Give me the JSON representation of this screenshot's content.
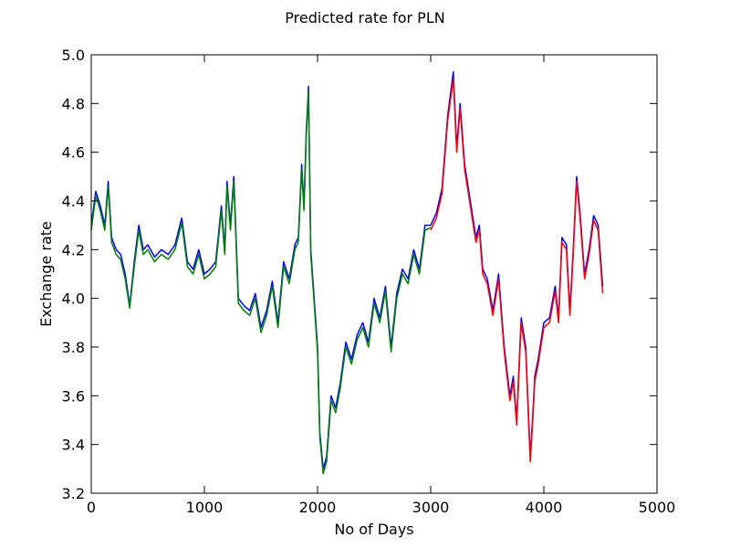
{
  "chart_data": {
    "type": "line",
    "title": "Predicted rate for PLN",
    "xlabel": "No of Days",
    "ylabel": "Exchange rate",
    "xlim": [
      0,
      5000
    ],
    "ylim": [
      3.2,
      5.0
    ],
    "xticks": [
      0,
      1000,
      2000,
      3000,
      4000,
      5000
    ],
    "yticks": [
      3.2,
      3.4,
      3.6,
      3.8,
      4.0,
      4.2,
      4.4,
      4.6,
      4.8,
      5.0
    ],
    "xtick_labels": [
      "0",
      "1000",
      "2000",
      "3000",
      "4000",
      "5000"
    ],
    "ytick_labels": [
      "3.2",
      "3.4",
      "3.6",
      "3.8",
      "4.0",
      "4.2",
      "4.4",
      "4.6",
      "4.8",
      "5.0"
    ],
    "grid": false,
    "series": [
      {
        "color": "#0000ff",
        "x": [
          0,
          40,
          80,
          120,
          150,
          180,
          220,
          260,
          300,
          340,
          380,
          420,
          460,
          500,
          560,
          620,
          680,
          740,
          800,
          850,
          900,
          950,
          1000,
          1050,
          1100,
          1150,
          1180,
          1200,
          1230,
          1260,
          1300,
          1350,
          1400,
          1450,
          1500,
          1550,
          1600,
          1650,
          1700,
          1750,
          1800,
          1830,
          1860,
          1880,
          1900,
          1920,
          1940,
          1970,
          2000,
          2020,
          2050,
          2080,
          2120,
          2160,
          2200,
          2250,
          2300,
          2350,
          2400,
          2450,
          2500,
          2550,
          2600,
          2650,
          2700,
          2750,
          2800,
          2850,
          2900,
          2950,
          3000,
          3050,
          3100,
          3150,
          3200,
          3230,
          3260,
          3300,
          3350,
          3400,
          3430,
          3460,
          3500,
          3550,
          3600,
          3650,
          3700,
          3730,
          3760,
          3800,
          3840,
          3880,
          3900,
          3920,
          3950,
          4000,
          4050,
          4100,
          4130,
          4160,
          4200,
          4230,
          4260,
          4290,
          4320,
          4360,
          4400,
          4440,
          4480,
          4520
        ],
        "y": [
          4.3,
          4.44,
          4.38,
          4.3,
          4.48,
          4.25,
          4.2,
          4.18,
          4.1,
          3.97,
          4.15,
          4.3,
          4.2,
          4.22,
          4.17,
          4.2,
          4.18,
          4.22,
          4.33,
          4.15,
          4.12,
          4.2,
          4.1,
          4.12,
          4.15,
          4.38,
          4.2,
          4.48,
          4.3,
          4.5,
          4.0,
          3.97,
          3.95,
          4.02,
          3.88,
          3.95,
          4.07,
          3.9,
          4.15,
          4.08,
          4.22,
          4.25,
          4.55,
          4.38,
          4.68,
          4.87,
          4.2,
          4.0,
          3.8,
          3.45,
          3.3,
          3.35,
          3.6,
          3.55,
          3.65,
          3.82,
          3.75,
          3.85,
          3.9,
          3.82,
          4.0,
          3.92,
          4.05,
          3.8,
          4.02,
          4.12,
          4.08,
          4.2,
          4.12,
          4.3,
          4.3,
          4.35,
          4.45,
          4.75,
          4.93,
          4.62,
          4.8,
          4.55,
          4.4,
          4.25,
          4.3,
          4.12,
          4.08,
          3.95,
          4.1,
          3.8,
          3.6,
          3.68,
          3.5,
          3.92,
          3.8,
          3.35,
          3.5,
          3.68,
          3.75,
          3.9,
          3.92,
          4.05,
          3.92,
          4.25,
          4.22,
          3.95,
          4.2,
          4.5,
          4.35,
          4.1,
          4.2,
          4.34,
          4.3,
          4.05
        ]
      },
      {
        "color": "#008000",
        "x": [
          0,
          40,
          80,
          120,
          150,
          180,
          220,
          260,
          300,
          340,
          380,
          420,
          460,
          500,
          560,
          620,
          680,
          740,
          800,
          850,
          900,
          950,
          1000,
          1050,
          1100,
          1150,
          1180,
          1200,
          1230,
          1260,
          1300,
          1350,
          1400,
          1450,
          1500,
          1550,
          1600,
          1650,
          1700,
          1750,
          1800,
          1830,
          1860,
          1880,
          1900,
          1920,
          1940,
          1970,
          2000,
          2020,
          2050,
          2080,
          2120,
          2160,
          2200,
          2250,
          2300,
          2350,
          2400,
          2450,
          2500,
          2550,
          2600,
          2650,
          2700,
          2750,
          2800,
          2850,
          2900,
          2950,
          3000
        ],
        "y": [
          4.28,
          4.42,
          4.36,
          4.28,
          4.46,
          4.23,
          4.18,
          4.16,
          4.08,
          3.96,
          4.13,
          4.28,
          4.18,
          4.2,
          4.15,
          4.18,
          4.16,
          4.2,
          4.31,
          4.13,
          4.1,
          4.18,
          4.08,
          4.1,
          4.13,
          4.36,
          4.18,
          4.46,
          4.28,
          4.48,
          3.98,
          3.95,
          3.93,
          4.0,
          3.86,
          3.93,
          4.05,
          3.88,
          4.13,
          4.06,
          4.2,
          4.23,
          4.53,
          4.36,
          4.66,
          4.85,
          4.18,
          3.98,
          3.78,
          3.43,
          3.28,
          3.33,
          3.58,
          3.53,
          3.63,
          3.8,
          3.73,
          3.83,
          3.88,
          3.8,
          3.98,
          3.9,
          4.03,
          3.78,
          4.0,
          4.1,
          4.06,
          4.18,
          4.1,
          4.28,
          4.29
        ]
      },
      {
        "color": "#ff0000",
        "x": [
          3000,
          3050,
          3100,
          3150,
          3200,
          3230,
          3260,
          3300,
          3350,
          3400,
          3430,
          3460,
          3500,
          3550,
          3600,
          3650,
          3700,
          3730,
          3760,
          3800,
          3840,
          3880,
          3900,
          3920,
          3950,
          4000,
          4050,
          4100,
          4130,
          4160,
          4200,
          4230,
          4260,
          4290,
          4320,
          4360,
          4400,
          4440,
          4480,
          4520
        ],
        "y": [
          4.28,
          4.33,
          4.43,
          4.73,
          4.9,
          4.6,
          4.78,
          4.53,
          4.38,
          4.23,
          4.28,
          4.1,
          4.06,
          3.93,
          4.08,
          3.78,
          3.58,
          3.66,
          3.48,
          3.9,
          3.78,
          3.33,
          3.48,
          3.66,
          3.73,
          3.88,
          3.9,
          4.03,
          3.9,
          4.23,
          4.2,
          3.93,
          4.18,
          4.48,
          4.33,
          4.08,
          4.18,
          4.32,
          4.28,
          4.02
        ]
      }
    ]
  }
}
